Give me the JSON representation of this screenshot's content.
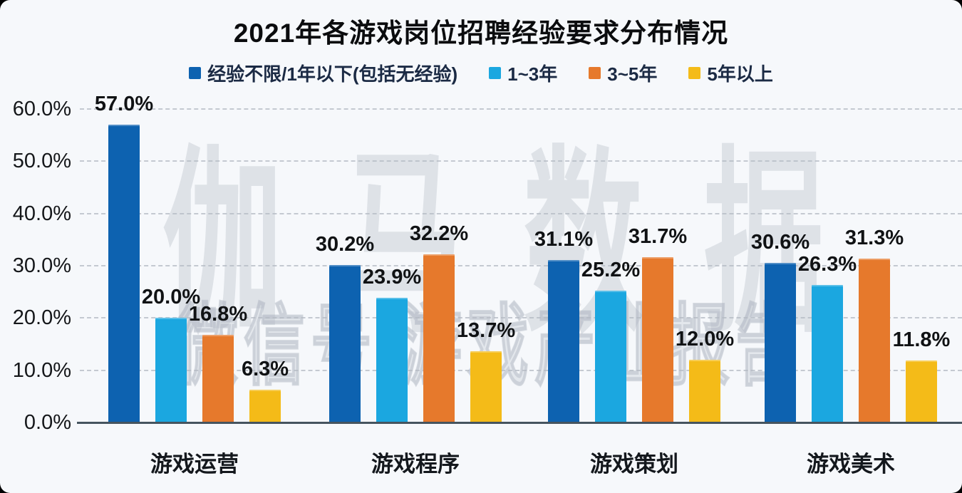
{
  "chart_data": {
    "type": "bar",
    "title": "2021年各游戏岗位招聘经验要求分布情况",
    "categories": [
      "游戏运营",
      "游戏程序",
      "游戏策划",
      "游戏美术"
    ],
    "series": [
      {
        "name": "经验不限/1年以下(包括无经验)",
        "color": "#0d62b0",
        "values": [
          57.0,
          30.2,
          31.1,
          30.6
        ]
      },
      {
        "name": "1~3年",
        "color": "#1ba7e0",
        "values": [
          20.0,
          23.9,
          25.2,
          26.3
        ]
      },
      {
        "name": "3~5年",
        "color": "#e6792c",
        "values": [
          16.8,
          32.2,
          31.7,
          31.3
        ]
      },
      {
        "name": "5年以上",
        "color": "#f4bb18",
        "values": [
          6.3,
          13.7,
          12.0,
          11.8
        ]
      }
    ],
    "value_suffix": "%",
    "yticks": [
      "60.0%",
      "50.0%",
      "40.0%",
      "30.0%",
      "20.0%",
      "10.0%",
      "0.0%"
    ],
    "ylim": [
      0,
      60
    ],
    "grid": "dashed-horizontal",
    "legend_position": "top",
    "watermark": {
      "main": "伽马数据",
      "sub": "微信号|游戏产业报告"
    }
  },
  "frame": {
    "background": "#f6f8fb",
    "corner_color": "#000000"
  }
}
